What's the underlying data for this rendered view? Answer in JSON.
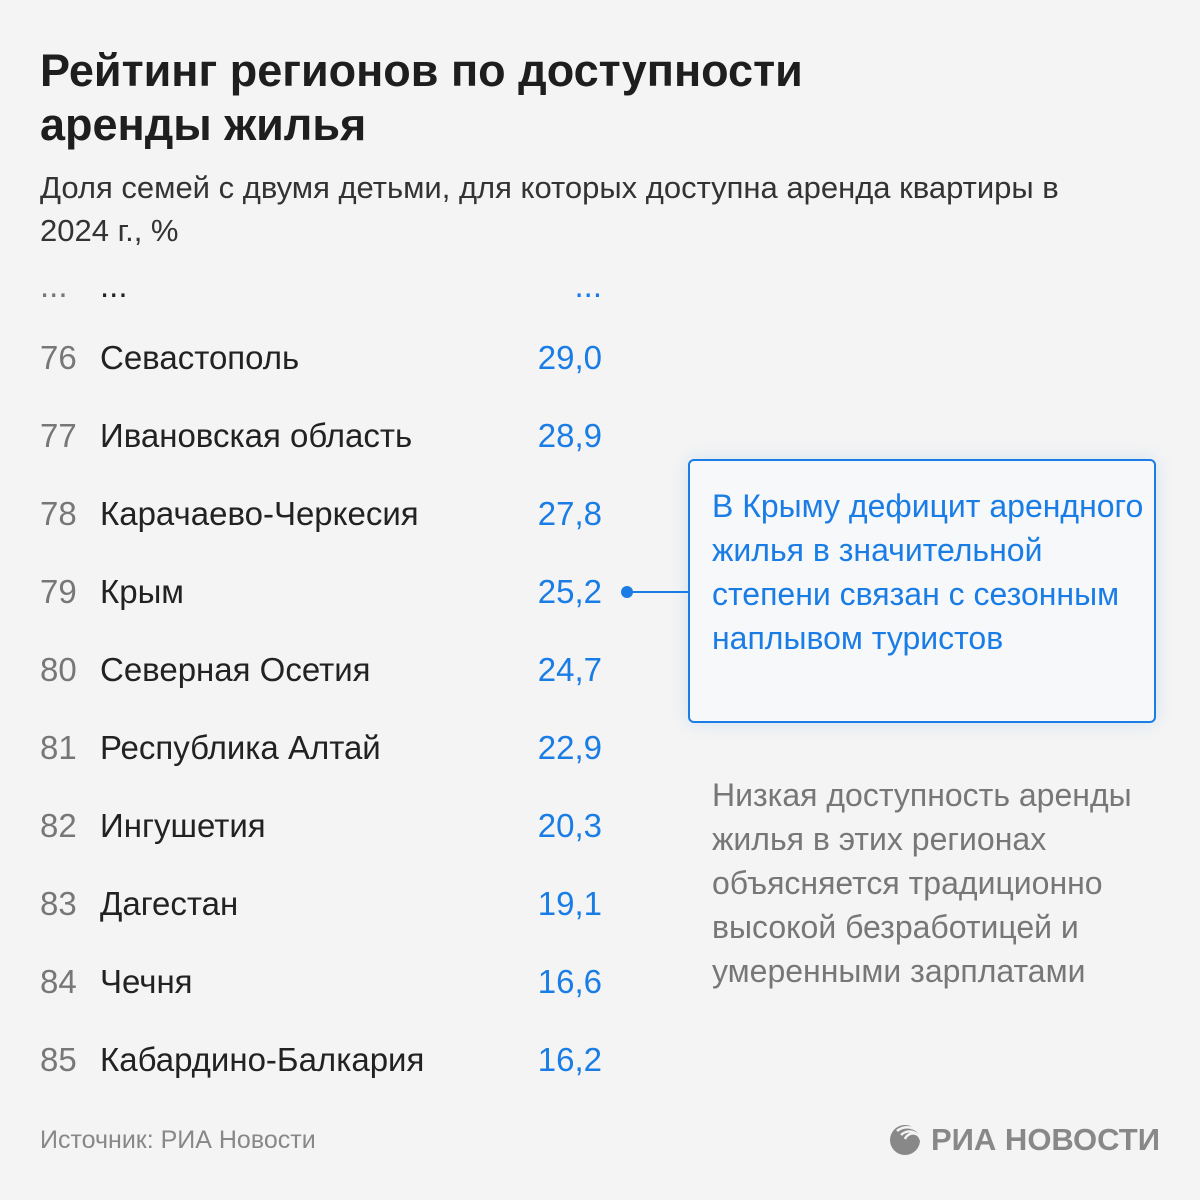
{
  "title": "Рейтинг регионов по доступности аренды жилья",
  "subtitle": "Доля семей с двумя детьми, для которых доступна аренда квартиры в 2024 г., %",
  "ellipsis": {
    "rank": "...",
    "name": "...",
    "value": "..."
  },
  "chart_data": {
    "type": "table",
    "title": "Рейтинг регионов по доступности аренды жилья",
    "subtitle": "Доля семей с двумя детьми, для которых доступна аренда квартиры в 2024 г., %",
    "columns": [
      "rank",
      "region",
      "value"
    ],
    "rows": [
      {
        "rank": "76",
        "region": "Севастополь",
        "value": "29,0"
      },
      {
        "rank": "77",
        "region": "Ивановская область",
        "value": "28,9"
      },
      {
        "rank": "78",
        "region": "Карачаево-Черкесия",
        "value": "27,8"
      },
      {
        "rank": "79",
        "region": "Крым",
        "value": "25,2"
      },
      {
        "rank": "80",
        "region": "Северная Осетия",
        "value": "24,7"
      },
      {
        "rank": "81",
        "region": "Республика Алтай",
        "value": "22,9"
      },
      {
        "rank": "82",
        "region": "Ингушетия",
        "value": "20,3"
      },
      {
        "rank": "83",
        "region": "Дагестан",
        "value": "19,1"
      },
      {
        "rank": "84",
        "region": "Чечня",
        "value": "16,6"
      },
      {
        "rank": "85",
        "region": "Кабардино-Балкария",
        "value": "16,2"
      }
    ],
    "annotations": [
      "В Крыму дефицит арендного жилья в значительной степени связан с сезонным наплывом туристов",
      "Низкая доступность аренды жилья в этих регионах объясняется традиционно высокой безработицей и умеренными зарплатами"
    ]
  },
  "callout": "В Крыму дефицит арендного жилья в значительной степени связан с сезонным наплывом туристов",
  "note": "Низкая доступность аренды жилья в этих регионах объясняется традиционно высокой безработицей и умеренными зарплатами",
  "source": "Источник: РИА Новости",
  "logo": "РИА НОВОСТИ",
  "colors": {
    "accent": "#1a7de6",
    "background": "#f4f4f4"
  }
}
